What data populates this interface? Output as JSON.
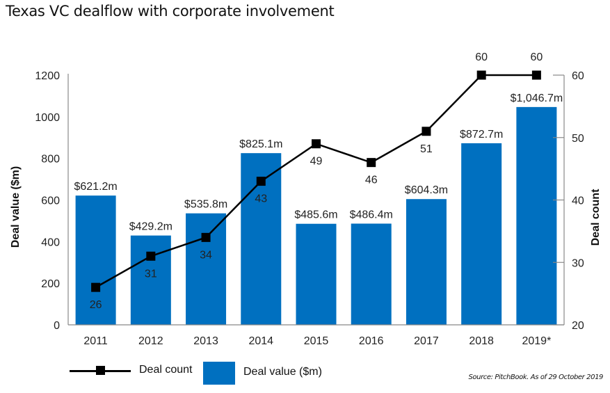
{
  "chart_data": {
    "type": "bar",
    "title": "Texas VC dealflow with corporate involvement",
    "categories": [
      "2011",
      "2012",
      "2013",
      "2014",
      "2015",
      "2016",
      "2017",
      "2018",
      "2019*"
    ],
    "series": [
      {
        "name": "Deal value ($m)",
        "type": "bar",
        "axis": "left",
        "color": "#0070C0",
        "values": [
          621.2,
          429.2,
          535.8,
          825.1,
          485.6,
          486.4,
          604.3,
          872.7,
          1046.7
        ],
        "labels": [
          "$621.2m",
          "$429.2m",
          "$535.8m",
          "$825.1m",
          "$485.6m",
          "$486.4m",
          "$604.3m",
          "$872.7m",
          "$1,046.7m"
        ]
      },
      {
        "name": "Deal count",
        "type": "line",
        "axis": "right",
        "color": "#000000",
        "marker": "square",
        "values": [
          26,
          31,
          34,
          43,
          49,
          46,
          51,
          60,
          60
        ],
        "labels": [
          "26",
          "31",
          "34",
          "43",
          "49",
          "46",
          "51",
          "60",
          "60"
        ]
      }
    ],
    "ylabel": "Deal value ($m)",
    "ylim": [
      0,
      1200
    ],
    "yticks": [
      "0",
      "200",
      "400",
      "600",
      "800",
      "1000",
      "1200"
    ],
    "y2label": "Deal count",
    "y2lim": [
      20,
      60
    ],
    "y2ticks": [
      "20",
      "30",
      "40",
      "50",
      "60"
    ],
    "grid": false,
    "legend": {
      "placement": "bottom-left",
      "items": [
        {
          "label": "Deal count",
          "symbol": "line-square"
        },
        {
          "label": "Deal value ($m)",
          "symbol": "box"
        }
      ]
    },
    "source": "Source: PitchBook. As of 29 October 2019"
  }
}
